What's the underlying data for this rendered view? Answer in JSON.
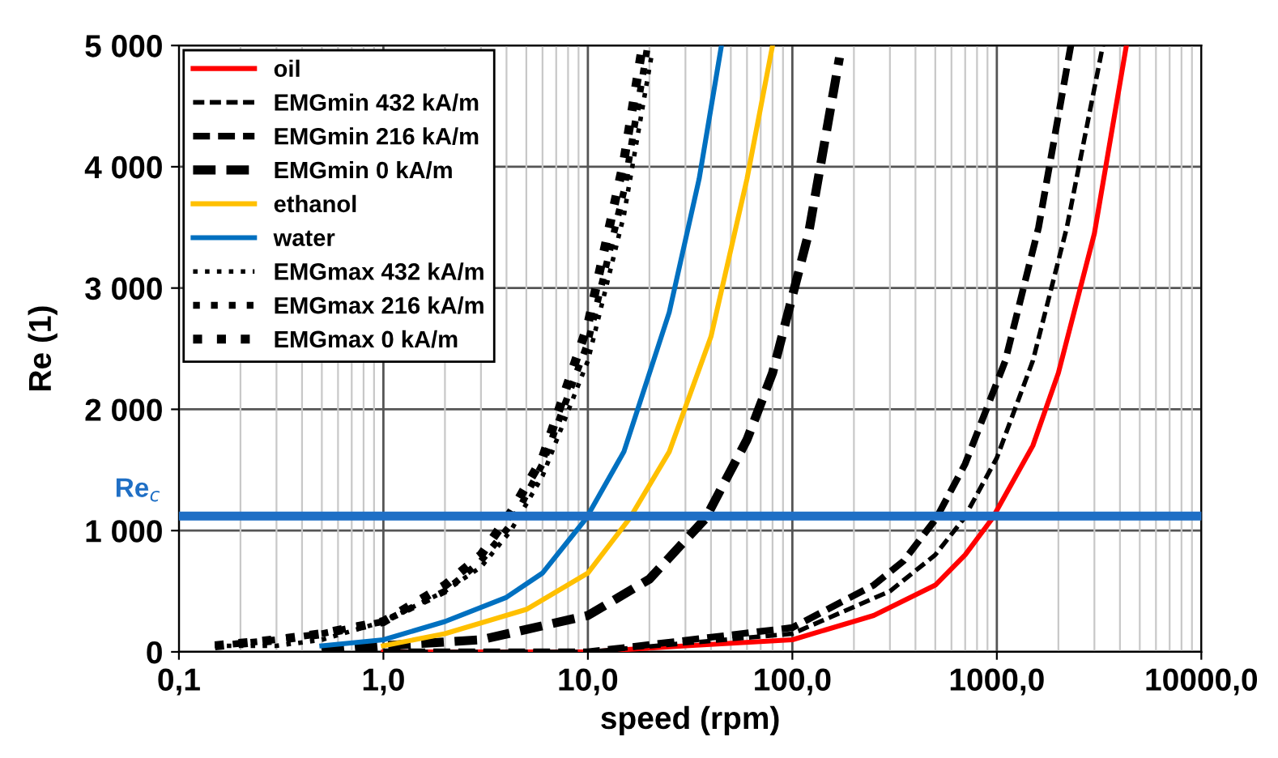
{
  "chart_data": {
    "type": "line",
    "xlabel": "speed (rpm)",
    "ylabel": "Re (1)",
    "log": "x",
    "xlim": [
      0.1,
      10000
    ],
    "xticks": [
      {
        "value": 0.1,
        "label": "0,1"
      },
      {
        "value": 1,
        "label": "1,0"
      },
      {
        "value": 10,
        "label": "10,0"
      },
      {
        "value": 100,
        "label": "100,0"
      },
      {
        "value": 1000,
        "label": "1000,0"
      },
      {
        "value": 10000,
        "label": "10000,0"
      }
    ],
    "ylim": [
      0,
      5000
    ],
    "yticks": [
      0,
      {
        "value": 1000,
        "label": "1 000"
      },
      {
        "value": 2000,
        "label": "2 000"
      },
      {
        "value": 3000,
        "label": "3 000"
      },
      {
        "value": 4000,
        "label": "4 000"
      },
      {
        "value": 5000,
        "label": "5 000"
      }
    ],
    "grid": true,
    "legend": "top left",
    "marker": "none",
    "ref_lines": [
      {
        "axis": "y",
        "value": 1120,
        "label": "Re$_{c}$",
        "color": "#1f6fc5"
      }
    ],
    "series": [
      {
        "name": "oil",
        "color": "#ff0000",
        "line_style": "solid",
        "x": [
          1,
          10,
          30,
          100,
          250,
          500,
          700,
          950,
          1500,
          2000,
          3000,
          4300
        ],
        "values": [
          0,
          0,
          50,
          100,
          300,
          550,
          800,
          1100,
          1700,
          2300,
          3450,
          5000
        ]
      },
      {
        "name": "EMGmin 432 kA/m",
        "color": "#000000",
        "line_style": "dashed",
        "x": [
          1,
          10,
          100,
          300,
          500,
          690,
          1000,
          1500,
          2200,
          3300
        ],
        "values": [
          0,
          0,
          150,
          500,
          800,
          1100,
          1600,
          2400,
          3500,
          5000
        ]
      },
      {
        "name": "EMGmin 216 kA/m",
        "color": "#000000",
        "line_style": "dashed",
        "x": [
          1,
          10,
          100,
          250,
          350,
          505,
          700,
          1100,
          1600,
          2300
        ],
        "values": [
          0,
          0,
          200,
          550,
          750,
          1100,
          1550,
          2400,
          3500,
          5000
        ]
      },
      {
        "name": "EMGmin 0 kA/m",
        "color": "#000000",
        "line_style": "dashed",
        "x": [
          0.5,
          1,
          3,
          10,
          20,
          37.6,
          60,
          80,
          120,
          170
        ],
        "values": [
          0,
          50,
          100,
          300,
          600,
          1100,
          1750,
          2300,
          3450,
          4900
        ]
      },
      {
        "name": "ethanol",
        "color": "#ffc000",
        "line_style": "solid",
        "x": [
          1,
          2,
          5,
          10,
          16,
          25,
          40,
          60,
          80
        ],
        "values": [
          50,
          150,
          350,
          650,
          1100,
          1650,
          2600,
          3900,
          5000
        ]
      },
      {
        "name": "water",
        "color": "#0070c0",
        "line_style": "solid",
        "x": [
          0.5,
          1,
          2,
          4,
          6,
          9.8,
          15,
          25,
          35,
          45
        ],
        "values": [
          50,
          100,
          250,
          450,
          650,
          1100,
          1650,
          2800,
          3900,
          5000
        ]
      },
      {
        "name": "EMGmax 432 kA/m",
        "color": "#000000",
        "line_style": "dotted",
        "x": [
          0.15,
          0.3,
          0.5,
          1,
          2,
          3,
          4.2,
          6,
          10,
          15,
          20.4
        ],
        "values": [
          50,
          50,
          100,
          250,
          500,
          700,
          1000,
          1450,
          2400,
          3600,
          4900
        ]
      },
      {
        "name": "EMGmax 216 kA/m",
        "color": "#000000",
        "line_style": "dotted",
        "x": [
          0.15,
          0.3,
          0.5,
          1,
          2,
          3,
          4.2,
          6,
          10,
          15,
          19.6
        ],
        "values": [
          50,
          100,
          150,
          250,
          500,
          750,
          1050,
          1550,
          2550,
          3800,
          5000
        ]
      },
      {
        "name": "EMGmax 0 kA/m",
        "color": "#000000",
        "line_style": "dotted",
        "x": [
          0.15,
          0.3,
          0.5,
          1,
          2,
          3,
          4.2,
          6,
          10,
          15,
          18.5
        ],
        "values": [
          50,
          100,
          150,
          250,
          550,
          800,
          1150,
          1600,
          2700,
          4050,
          5000
        ]
      }
    ]
  }
}
